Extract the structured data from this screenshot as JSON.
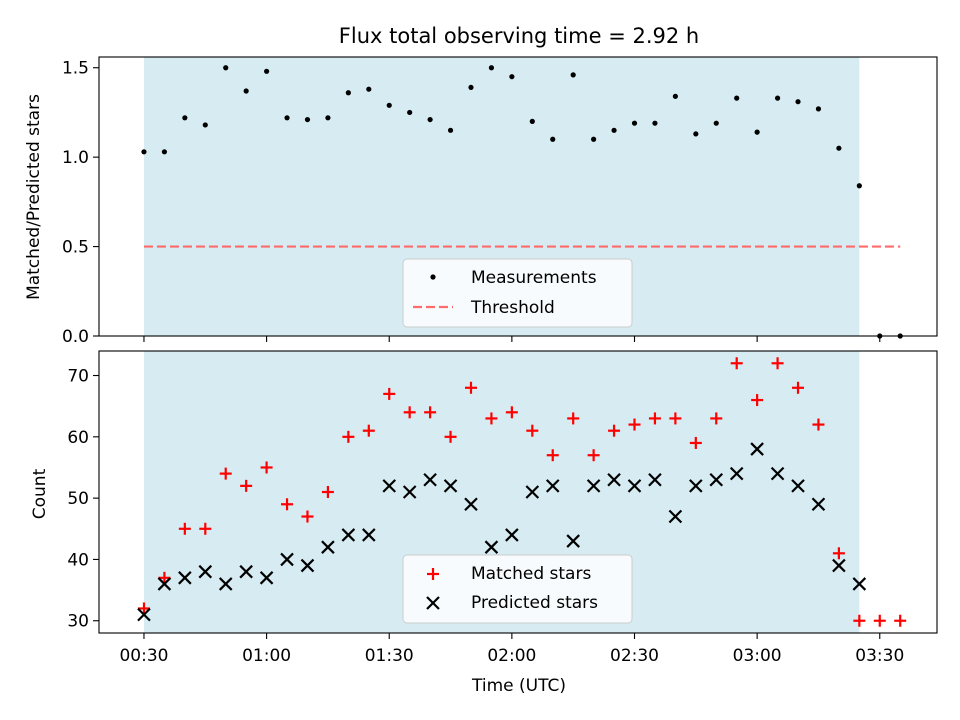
{
  "figure": {
    "title": "Flux total observing time = 2.92 h",
    "background": "#ffffff",
    "shade_color": "#add8e6"
  },
  "chart_data": [
    {
      "type": "scatter",
      "title": "Flux total observing time = 2.92 h",
      "ylabel": "Matched/Predicted stars",
      "xlabel": "",
      "ylim": [
        0,
        1.56
      ],
      "y_ticks": [
        {
          "value": 0.0,
          "label": "0.0"
        },
        {
          "value": 0.5,
          "label": "0.5"
        },
        {
          "value": 1.0,
          "label": "1.0"
        },
        {
          "value": 1.5,
          "label": "1.5"
        }
      ],
      "x_range": [
        "00:19",
        "03:44"
      ],
      "shaded_range": [
        "00:30",
        "03:25"
      ],
      "legend_position": "lower-center",
      "series": [
        {
          "name": "Measurements",
          "marker": "dot",
          "color": "#000000",
          "x": [
            "00:30",
            "00:35",
            "00:40",
            "00:45",
            "00:50",
            "00:55",
            "01:00",
            "01:05",
            "01:10",
            "01:15",
            "01:20",
            "01:25",
            "01:30",
            "01:35",
            "01:40",
            "01:45",
            "01:50",
            "01:55",
            "02:00",
            "02:05",
            "02:10",
            "02:15",
            "02:20",
            "02:25",
            "02:30",
            "02:35",
            "02:40",
            "02:45",
            "02:50",
            "02:55",
            "03:00",
            "03:05",
            "03:10",
            "03:15",
            "03:20",
            "03:25",
            "03:30",
            "03:35"
          ],
          "y": [
            1.03,
            1.03,
            1.22,
            1.18,
            1.5,
            1.37,
            1.48,
            1.22,
            1.21,
            1.22,
            1.36,
            1.38,
            1.29,
            1.25,
            1.21,
            1.15,
            1.39,
            1.5,
            1.45,
            1.2,
            1.1,
            1.46,
            1.1,
            1.15,
            1.19,
            1.19,
            1.34,
            1.13,
            1.19,
            1.33,
            1.14,
            1.33,
            1.31,
            1.27,
            1.05,
            0.84,
            0.0,
            0.0
          ]
        },
        {
          "name": "Threshold",
          "marker": "dashed-line",
          "color": "#ff6b6b",
          "x": [
            "00:30",
            "03:35"
          ],
          "y": [
            0.5,
            0.5
          ]
        }
      ]
    },
    {
      "type": "scatter",
      "ylabel": "Count",
      "xlabel": "Time (UTC)",
      "ylim": [
        28,
        74
      ],
      "y_ticks": [
        {
          "value": 30,
          "label": "30"
        },
        {
          "value": 40,
          "label": "40"
        },
        {
          "value": 50,
          "label": "50"
        },
        {
          "value": 60,
          "label": "60"
        },
        {
          "value": 70,
          "label": "70"
        }
      ],
      "x_ticks": [
        {
          "value": "00:30",
          "label": "00:30"
        },
        {
          "value": "01:00",
          "label": "01:00"
        },
        {
          "value": "01:30",
          "label": "01:30"
        },
        {
          "value": "02:00",
          "label": "02:00"
        },
        {
          "value": "02:30",
          "label": "02:30"
        },
        {
          "value": "03:00",
          "label": "03:00"
        },
        {
          "value": "03:30",
          "label": "03:30"
        }
      ],
      "x_range": [
        "00:19",
        "03:44"
      ],
      "shaded_range": [
        "00:30",
        "03:25"
      ],
      "legend_position": "lower-center",
      "series": [
        {
          "name": "Matched stars",
          "marker": "plus",
          "color": "#ff0000",
          "x": [
            "00:30",
            "00:35",
            "00:40",
            "00:45",
            "00:50",
            "00:55",
            "01:00",
            "01:05",
            "01:10",
            "01:15",
            "01:20",
            "01:25",
            "01:30",
            "01:35",
            "01:40",
            "01:45",
            "01:50",
            "01:55",
            "02:00",
            "02:05",
            "02:10",
            "02:15",
            "02:20",
            "02:25",
            "02:30",
            "02:35",
            "02:40",
            "02:45",
            "02:50",
            "02:55",
            "03:00",
            "03:05",
            "03:10",
            "03:15",
            "03:20",
            "03:25",
            "03:30",
            "03:35"
          ],
          "y": [
            32,
            37,
            45,
            45,
            54,
            52,
            55,
            49,
            47,
            51,
            60,
            61,
            67,
            64,
            64,
            60,
            68,
            63,
            64,
            61,
            57,
            63,
            57,
            61,
            62,
            63,
            63,
            59,
            63,
            72,
            66,
            72,
            68,
            62,
            41,
            30,
            30,
            30
          ]
        },
        {
          "name": "Predicted stars",
          "marker": "x",
          "color": "#000000",
          "x": [
            "00:30",
            "00:35",
            "00:40",
            "00:45",
            "00:50",
            "00:55",
            "01:00",
            "01:05",
            "01:10",
            "01:15",
            "01:20",
            "01:25",
            "01:30",
            "01:35",
            "01:40",
            "01:45",
            "01:50",
            "01:55",
            "02:00",
            "02:05",
            "02:10",
            "02:15",
            "02:20",
            "02:25",
            "02:30",
            "02:35",
            "02:40",
            "02:45",
            "02:50",
            "02:55",
            "03:00",
            "03:05",
            "03:10",
            "03:15",
            "03:20",
            "03:25"
          ],
          "y": [
            31,
            36,
            37,
            38,
            36,
            38,
            37,
            40,
            39,
            42,
            44,
            44,
            52,
            51,
            53,
            52,
            49,
            42,
            44,
            51,
            52,
            43,
            52,
            53,
            52,
            53,
            47,
            52,
            53,
            54,
            58,
            54,
            52,
            49,
            39,
            36
          ]
        }
      ]
    }
  ]
}
